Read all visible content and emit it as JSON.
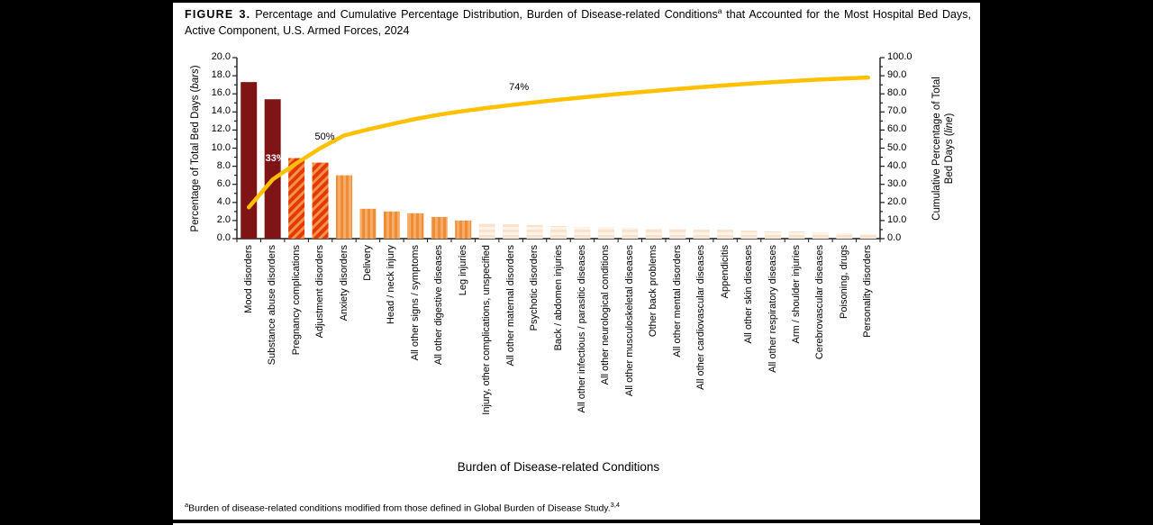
{
  "figure": {
    "label": "FIGURE 3.",
    "title_before_sup": "Percentage and Cumulative Percentage Distribution, Burden of Disease-related Conditions",
    "title_sup": "a",
    "title_after_sup": "that Accounted for the Most Hospital Bed Days, Active Component, U.S. Armed Forces, 2024"
  },
  "footnote": {
    "sup": "a",
    "text": "Burden of disease-related conditions modified from those defined in Global Burden of Disease Study.",
    "ref_sup": "3,4"
  },
  "chart_data": {
    "type": "pareto (bar + line)",
    "xlabel": "Burden of Disease-related Conditions",
    "ylabel_left": {
      "prefix": "Percentage of Total Bed Days (",
      "italic": "bars",
      "suffix": ")"
    },
    "ylabel_right": {
      "prefix": "Cumulative Percentage of Total Bed Days (",
      "italic": "line",
      "suffix": ")"
    },
    "y_axis_left": {
      "min": 0,
      "max": 20,
      "tick_step": 2,
      "minor_tick_step": 1,
      "tick_decimals": 1
    },
    "y_axis_right": {
      "min": 0,
      "max": 100,
      "tick_step": 10,
      "minor_tick_step": 5,
      "tick_decimals": 1
    },
    "grid": false,
    "legend": "none",
    "categories": [
      "Mood disorders",
      "Substance abuse disorders",
      "Pregnancy complications",
      "Adjustment disorders",
      "Anxiety disorders",
      "Delivery",
      "Head / neck injury",
      "All other signs / symptoms",
      "All other digestive diseases",
      "Leg injuries",
      "Injury, other complications, unspecified",
      "All other maternal disorders",
      "Psychotic disorders",
      "Back / abdomen injuries",
      "All other infectious / parasitic diseases",
      "All other neurological conditions",
      "All other musculoskeletal diseases",
      "Other back problems",
      "All other mental disorders",
      "All other cardiovascular diseases",
      "Appendicitis",
      "All other skin diseases",
      "All other respiratory diseases",
      "Arm / shoulder injuries",
      "Cerebrovascular diseases",
      "Poisoning, drugs",
      "Personality disorders"
    ],
    "series": [
      {
        "name": "Percentage of Total Bed Days",
        "type": "bar",
        "values": [
          17.3,
          15.4,
          8.9,
          8.4,
          7.0,
          3.3,
          3.0,
          2.8,
          2.4,
          2.0,
          1.7,
          1.6,
          1.5,
          1.4,
          1.3,
          1.3,
          1.2,
          1.1,
          1.1,
          1.0,
          1.0,
          0.9,
          0.8,
          0.8,
          0.7,
          0.6,
          0.5
        ]
      },
      {
        "name": "Cumulative Percentage of Total Bed Days",
        "type": "line",
        "color": "#FFC000",
        "values": [
          17.3,
          32.7,
          41.6,
          50.0,
          57.0,
          60.3,
          63.3,
          66.1,
          68.5,
          70.5,
          72.2,
          73.8,
          75.3,
          76.7,
          78.0,
          79.3,
          80.5,
          81.6,
          82.7,
          83.7,
          84.7,
          85.6,
          86.4,
          87.2,
          87.9,
          88.5,
          89.0
        ]
      }
    ],
    "annotations": [
      {
        "text": "33%",
        "at_category_index": 1,
        "color": "#FFFFFF"
      },
      {
        "text": "50%",
        "at_category_index": 3,
        "color": "#000000"
      },
      {
        "text": "74%",
        "at_category_index": 11,
        "color": "#000000"
      }
    ],
    "bar_style_groups": [
      {
        "start": 0,
        "end": 1,
        "fill": "solid",
        "color": "#7E1416"
      },
      {
        "start": 2,
        "end": 3,
        "fill": "diagonal-hatch",
        "color": "#E2380C",
        "stripe_color": "#F29441"
      },
      {
        "start": 4,
        "end": 9,
        "fill": "vertical-stripes",
        "color": "#F6AC66",
        "stripe_color": "#EF8D36"
      },
      {
        "start": 10,
        "end": 26,
        "fill": "horizontal-stripes",
        "color": "#FBE2CB",
        "stripe_color": "#FEF3E9"
      }
    ],
    "axis_color": "#1a1a1a"
  }
}
